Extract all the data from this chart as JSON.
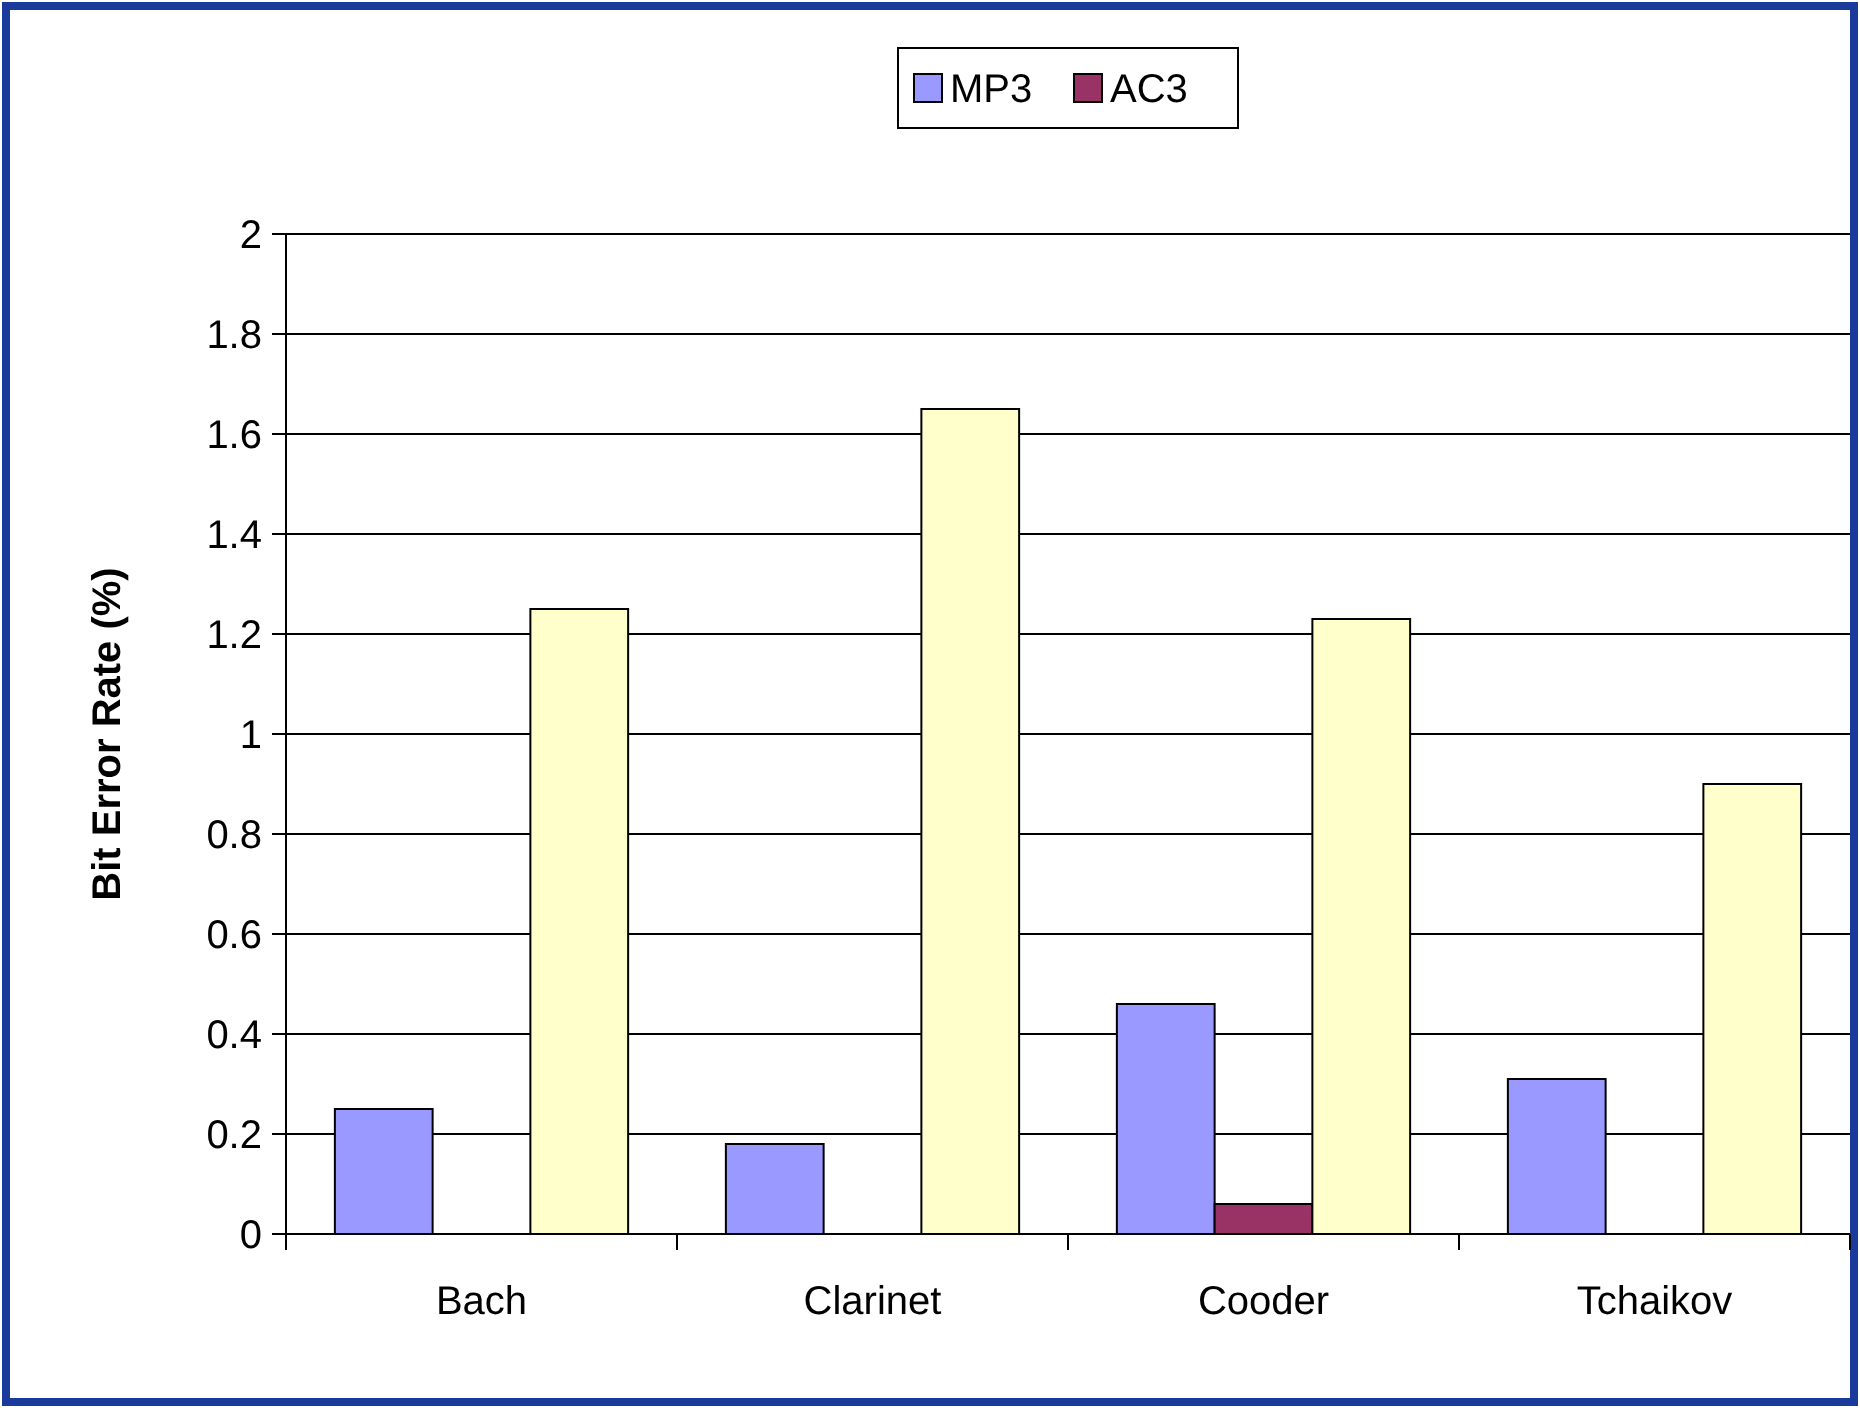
{
  "chart_data": {
    "type": "bar",
    "ylabel": "Bit Error Rate (%)",
    "categories": [
      "Bach",
      "Clarinet",
      "Cooder",
      "Tchaikov"
    ],
    "series": [
      {
        "name": "MP3",
        "color": "#9999ff",
        "values": [
          0.25,
          0.18,
          0.46,
          0.31
        ]
      },
      {
        "name": "AC3",
        "color": "#993366",
        "values": [
          0,
          0,
          0.06,
          0
        ]
      },
      {
        "color": "#ffffcc",
        "values": [
          1.25,
          1.65,
          1.23,
          0.9
        ]
      }
    ],
    "ylim": [
      0,
      2
    ],
    "yticks": [
      0,
      {
        "value": 0.2,
        "label": "0.2"
      },
      {
        "value": 0.4,
        "label": "0.4"
      },
      {
        "value": 0.6,
        "label": "0.6"
      },
      {
        "value": 0.8,
        "label": "0.8"
      },
      1,
      {
        "value": 1.2,
        "label": "1.2"
      },
      {
        "value": 1.4,
        "label": "1.4"
      },
      {
        "value": 1.6,
        "label": "1.6"
      },
      {
        "value": 1.8,
        "label": "1.8"
      },
      2
    ],
    "grid": "y",
    "legend": "top"
  }
}
